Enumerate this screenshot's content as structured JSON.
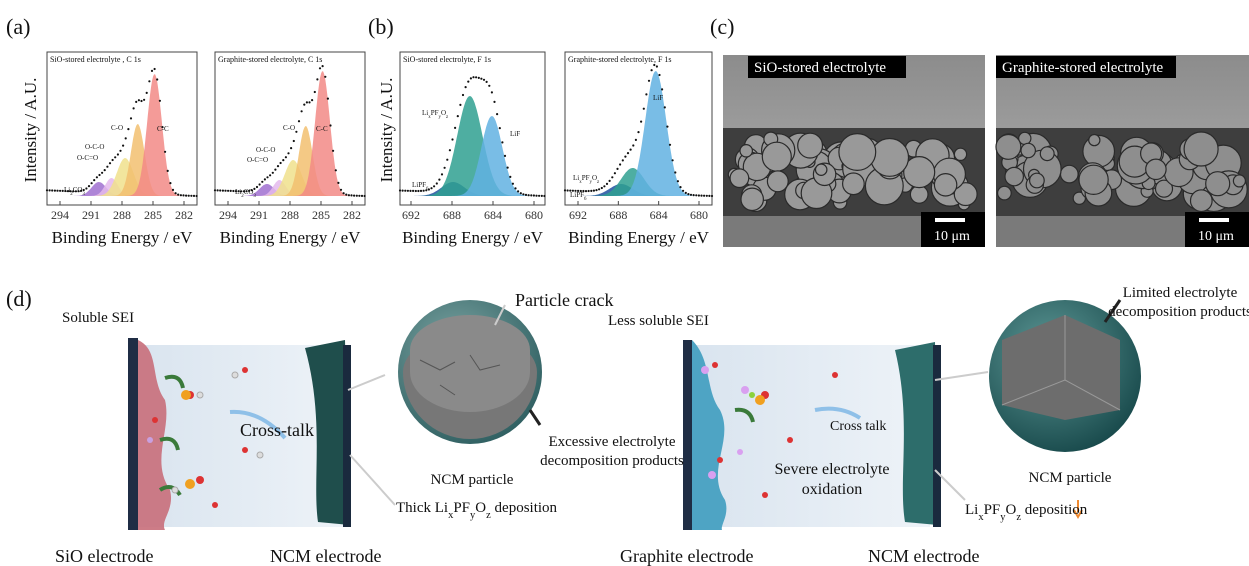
{
  "panel_labels": [
    "(a)",
    "(b)",
    "(c)",
    "(d)"
  ],
  "a": {
    "y_label": "Intensity / A.U.",
    "plots": [
      {
        "title": "SiO-stored electrolyte , C 1s",
        "x_ticks": [
          "294",
          "291",
          "288",
          "285",
          "282"
        ],
        "x_label": "Binding Energy / eV",
        "peak_labels": [
          "C-C",
          "C-O",
          "O-C-O",
          "O-C=O",
          [
            "Li",
            "2",
            "CO",
            "3"
          ]
        ]
      },
      {
        "title": "Graphite-stored electrolyte, C 1s",
        "x_ticks": [
          "294",
          "291",
          "288",
          "285",
          "282"
        ],
        "x_label": "Binding Energy / eV",
        "peak_labels": [
          "C-C",
          "C-O",
          "O-C-O",
          "O-C=O",
          [
            "Li",
            "2",
            "CO",
            "3"
          ]
        ]
      }
    ]
  },
  "b": {
    "y_label": "Intensity / A.U.",
    "plots": [
      {
        "title": "SiO-stored electrolyte, F 1s",
        "x_ticks": [
          "692",
          "688",
          "684",
          "680"
        ],
        "x_label": "Binding Energy / eV",
        "peak_labels": [
          [
            "Li",
            "x",
            "PF",
            "y",
            "O",
            "z"
          ],
          "LiF",
          [
            "LiPF",
            "6"
          ]
        ]
      },
      {
        "title": "Graphite-stored electrolyte, F 1s",
        "x_ticks": [
          "692",
          "688",
          "684",
          "680"
        ],
        "x_label": "Binding Energy / eV",
        "peak_labels": [
          [
            "Li",
            "x",
            "PF",
            "y",
            "O",
            "z"
          ],
          "LiF",
          [
            "LiPF",
            "6"
          ]
        ]
      }
    ]
  },
  "c": {
    "images": [
      {
        "label": "SiO-stored electrolyte",
        "scale": "10 μm"
      },
      {
        "label": "Graphite-stored electrolyte",
        "scale": "10 μm"
      }
    ]
  },
  "d": {
    "left": {
      "sei": "Soluble SEI",
      "crack": "Particle crack",
      "cross_talk": "Cross-talk",
      "products": [
        "Excessive electrolyte",
        "decomposition products"
      ],
      "particle": "NCM particle",
      "deposition": [
        "Thick Li",
        "x",
        "PF",
        "y",
        "O",
        "z",
        " deposition"
      ],
      "anode": "SiO electrode",
      "cathode": "NCM electrode"
    },
    "right": {
      "sei": "Less soluble SEI",
      "products": [
        "Limited electrolyte",
        "decomposition products"
      ],
      "cross_talk": "Cross talk",
      "oxidation": [
        "Severe electrolyte",
        "oxidation"
      ],
      "particle": "NCM particle",
      "deposition": [
        "Li",
        "x",
        "PF",
        "y",
        "O",
        "z",
        " deposition"
      ],
      "anode": "Graphite electrode",
      "cathode": "NCM electrode"
    }
  }
}
